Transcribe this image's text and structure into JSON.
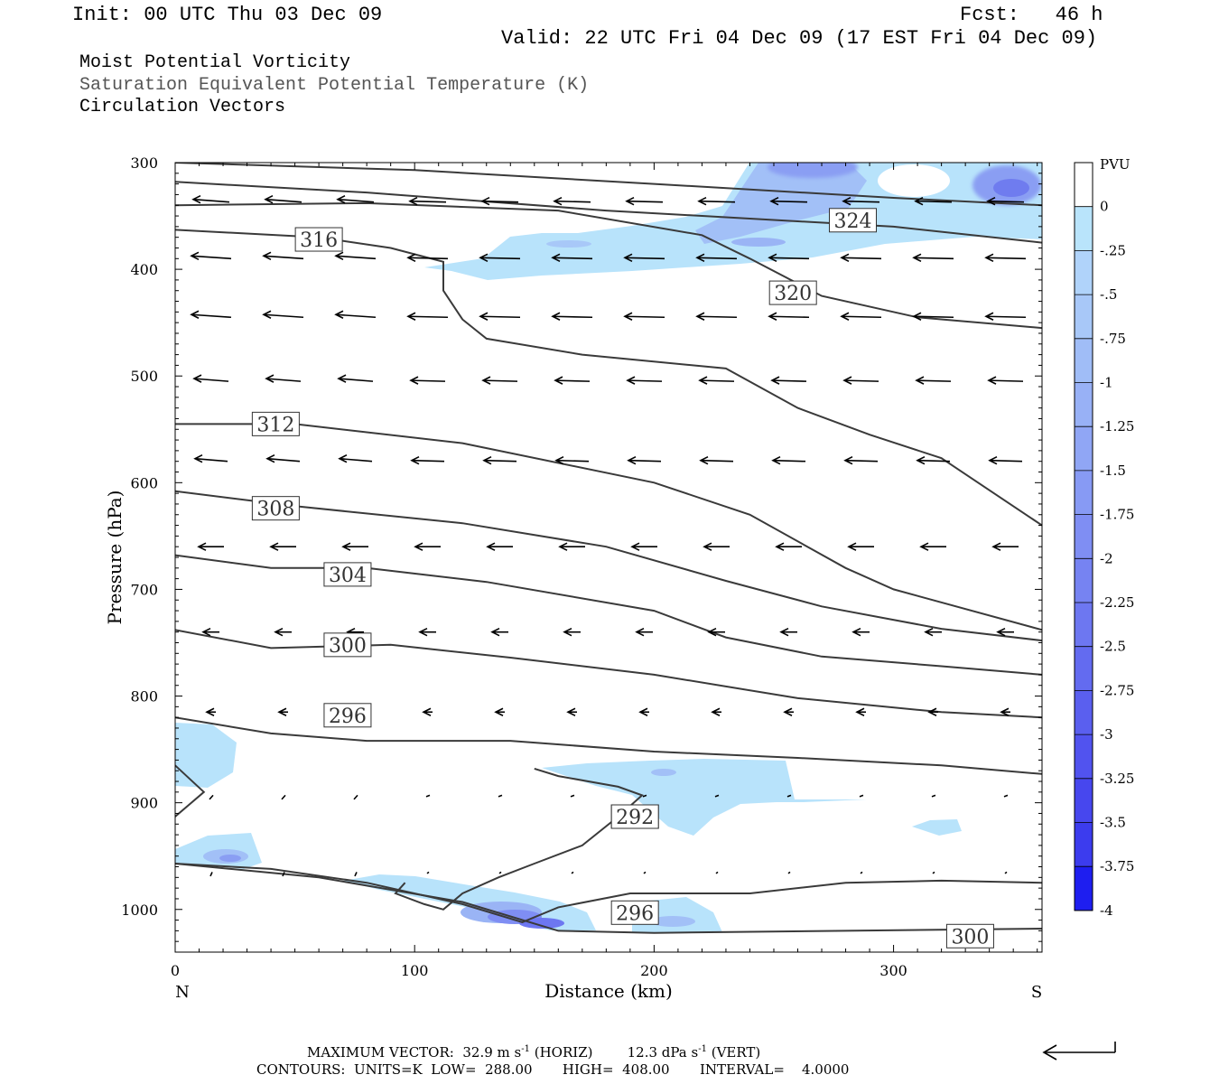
{
  "header": {
    "init": "Init: 00 UTC Thu 03 Dec 09",
    "fcst": "Fcst:   46 h",
    "valid": "Valid: 22 UTC Fri 04 Dec 09 (17 EST Fri 04 Dec 09)"
  },
  "fields": {
    "field1": "Moist Potential Vorticity",
    "field2": "Saturation Equivalent Potential Temperature (K)",
    "field3": "Circulation Vectors"
  },
  "footer": {
    "maxvec_prefix": "MAXIMUM VECTOR:  32.9 m s",
    "maxvec_mid": " (HORIZ)        12.3 dPa s",
    "maxvec_end": " (VERT)",
    "exp": "-1",
    "contours": "CONTOURS:  UNITS=K  LOW=  288.00       HIGH=  408.00       INTERVAL=    4.0000"
  },
  "colors": {
    "contour": "#3a3a3a",
    "pv_light": "#b8e3fb",
    "pv_mid": "#9ab4f5",
    "pv_dark": "#6d7bef"
  },
  "chart_data": {
    "type": "cross-section",
    "xlabel": "Distance (km)",
    "ylabel": "Pressure (hPa)",
    "xlim": [
      0,
      362
    ],
    "ylim": [
      1040,
      300
    ],
    "x_ticks": [
      "0",
      "100",
      "200",
      "300"
    ],
    "y_ticks": [
      "300",
      "400",
      "500",
      "600",
      "700",
      "800",
      "900",
      "1000"
    ],
    "x_end_labels": {
      "left": "N",
      "right": "S"
    },
    "colorbar": {
      "title": "PVU",
      "levels": [
        "0",
        "-.25",
        "-.5",
        "-.75",
        "-1",
        "-1.25",
        "-1.5",
        "-1.75",
        "-2",
        "-2.25",
        "-2.5",
        "-2.75",
        "-3",
        "-3.25",
        "-3.5",
        "-3.75",
        "-4"
      ],
      "colors": [
        "#ffffff",
        "#b9e4fb",
        "#b0d3fa",
        "#a8c8f8",
        "#a0bdf7",
        "#98b1f6",
        "#90a6f5",
        "#879af4",
        "#7f8ef3",
        "#7683f2",
        "#6d77f1",
        "#636bf0",
        "#5a5fef",
        "#5153ef",
        "#4747ee",
        "#3c3cee",
        "#1e1ef0"
      ]
    },
    "contours": [
      {
        "label": "292",
        "label_at": [
          192,
          913
        ],
        "points": [
          [
            0,
            865
          ],
          [
            12,
            890
          ],
          [
            0,
            913
          ],
          [
            0,
            913
          ]
        ]
      },
      {
        "label": "292",
        "label_at": [
          192,
          913
        ],
        "points": [
          [
            96,
            975
          ],
          [
            92,
            985
          ],
          [
            104,
            995
          ],
          [
            112,
            1000
          ],
          [
            120,
            985
          ],
          [
            135,
            970
          ],
          [
            150,
            957
          ],
          [
            170,
            940
          ],
          [
            185,
            913
          ],
          [
            195,
            893
          ],
          [
            185,
            885
          ],
          [
            160,
            875
          ],
          [
            150,
            868
          ]
        ]
      },
      {
        "label": "296",
        "label_at": [
          72,
          818
        ],
        "points": [
          [
            0,
            820
          ],
          [
            40,
            835
          ],
          [
            80,
            842
          ],
          [
            140,
            842
          ],
          [
            200,
            852
          ],
          [
            260,
            858
          ],
          [
            320,
            865
          ],
          [
            362,
            873
          ]
        ]
      },
      {
        "label": "296",
        "label_at": [
          192,
          1003
        ],
        "points": [
          [
            0,
            957
          ],
          [
            40,
            962
          ],
          [
            80,
            975
          ],
          [
            120,
            995
          ],
          [
            145,
            1012
          ],
          [
            160,
            998
          ],
          [
            190,
            985
          ],
          [
            240,
            985
          ],
          [
            280,
            975
          ],
          [
            320,
            973
          ],
          [
            362,
            975
          ]
        ]
      },
      {
        "label": "300",
        "label_at": [
          72,
          752
        ],
        "points": [
          [
            0,
            738
          ],
          [
            40,
            755
          ],
          [
            90,
            752
          ],
          [
            140,
            764
          ],
          [
            200,
            780
          ],
          [
            260,
            802
          ],
          [
            320,
            815
          ],
          [
            362,
            820
          ]
        ]
      },
      {
        "label": "300",
        "label_at": [
          332,
          1025
        ],
        "points": [
          [
            0,
            957
          ],
          [
            60,
            970
          ],
          [
            120,
            993
          ],
          [
            160,
            1020
          ],
          [
            200,
            1022
          ],
          [
            280,
            1020
          ],
          [
            362,
            1018
          ]
        ]
      },
      {
        "label": "304",
        "label_at": [
          72,
          686
        ],
        "points": [
          [
            0,
            668
          ],
          [
            40,
            680
          ],
          [
            80,
            680
          ],
          [
            130,
            693
          ],
          [
            200,
            720
          ],
          [
            230,
            745
          ],
          [
            270,
            763
          ],
          [
            320,
            772
          ],
          [
            362,
            780
          ]
        ]
      },
      {
        "label": "308",
        "label_at": [
          42,
          624
        ],
        "points": [
          [
            0,
            608
          ],
          [
            50,
            622
          ],
          [
            120,
            638
          ],
          [
            180,
            660
          ],
          [
            230,
            692
          ],
          [
            270,
            716
          ],
          [
            320,
            737
          ],
          [
            362,
            748
          ]
        ]
      },
      {
        "label": "312",
        "label_at": [
          42,
          545
        ],
        "points": [
          [
            0,
            545
          ],
          [
            50,
            545
          ],
          [
            120,
            563
          ],
          [
            200,
            600
          ],
          [
            240,
            630
          ],
          [
            280,
            680
          ],
          [
            300,
            700
          ],
          [
            362,
            738
          ]
        ]
      },
      {
        "label": "316",
        "label_at": [
          60,
          372
        ],
        "points": [
          [
            0,
            363
          ],
          [
            60,
            370
          ],
          [
            90,
            380
          ],
          [
            112,
            393
          ],
          [
            112,
            420
          ],
          [
            120,
            447
          ],
          [
            130,
            465
          ],
          [
            170,
            480
          ],
          [
            230,
            493
          ],
          [
            260,
            530
          ],
          [
            290,
            555
          ],
          [
            320,
            577
          ],
          [
            362,
            640
          ]
        ]
      },
      {
        "label": "320",
        "label_at": [
          258,
          422
        ],
        "points": [
          [
            0,
            340
          ],
          [
            80,
            338
          ],
          [
            160,
            345
          ],
          [
            220,
            368
          ],
          [
            240,
            390
          ],
          [
            270,
            425
          ],
          [
            310,
            445
          ],
          [
            362,
            455
          ]
        ]
      },
      {
        "label": "324",
        "label_at": [
          283,
          354
        ],
        "points": [
          [
            0,
            318
          ],
          [
            80,
            328
          ],
          [
            180,
            345
          ],
          [
            300,
            360
          ],
          [
            362,
            375
          ]
        ]
      },
      {
        "label": "",
        "label_at": null,
        "points": [
          [
            0,
            300
          ],
          [
            100,
            307
          ],
          [
            200,
            320
          ],
          [
            300,
            333
          ],
          [
            362,
            340
          ]
        ]
      }
    ],
    "arrow_rows_hpa": [
      337,
      390,
      445,
      505,
      580,
      660,
      740,
      815,
      893,
      965
    ],
    "max_vector": {
      "horiz": 32.9,
      "vert": 12.3
    }
  }
}
